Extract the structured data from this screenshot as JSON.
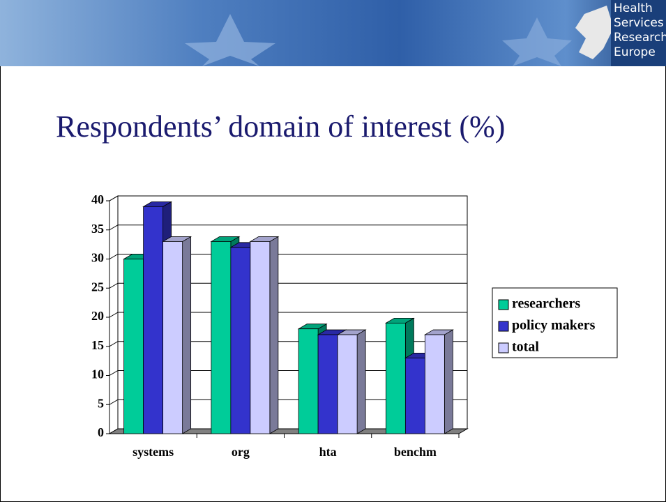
{
  "header": {
    "logo": [
      "Health",
      "Services",
      "Research",
      "Europe"
    ]
  },
  "chart_data": {
    "type": "bar3d",
    "title": "Respondents’ domain of interest (%)",
    "categories": [
      "systems",
      "org",
      "hta",
      "benchm"
    ],
    "series": [
      {
        "name": "researchers",
        "color": "#00cc99",
        "values": [
          30,
          33,
          18,
          19
        ]
      },
      {
        "name": "policy makers",
        "color": "#3333cc",
        "values": [
          39,
          32,
          17,
          13
        ]
      },
      {
        "name": "total",
        "color": "#ccccff",
        "values": [
          33,
          33,
          17,
          17
        ]
      }
    ],
    "ylim": [
      0,
      40
    ],
    "yticks": [
      0,
      5,
      10,
      15,
      20,
      25,
      30,
      35,
      40
    ],
    "grid": true,
    "legend": "right"
  }
}
